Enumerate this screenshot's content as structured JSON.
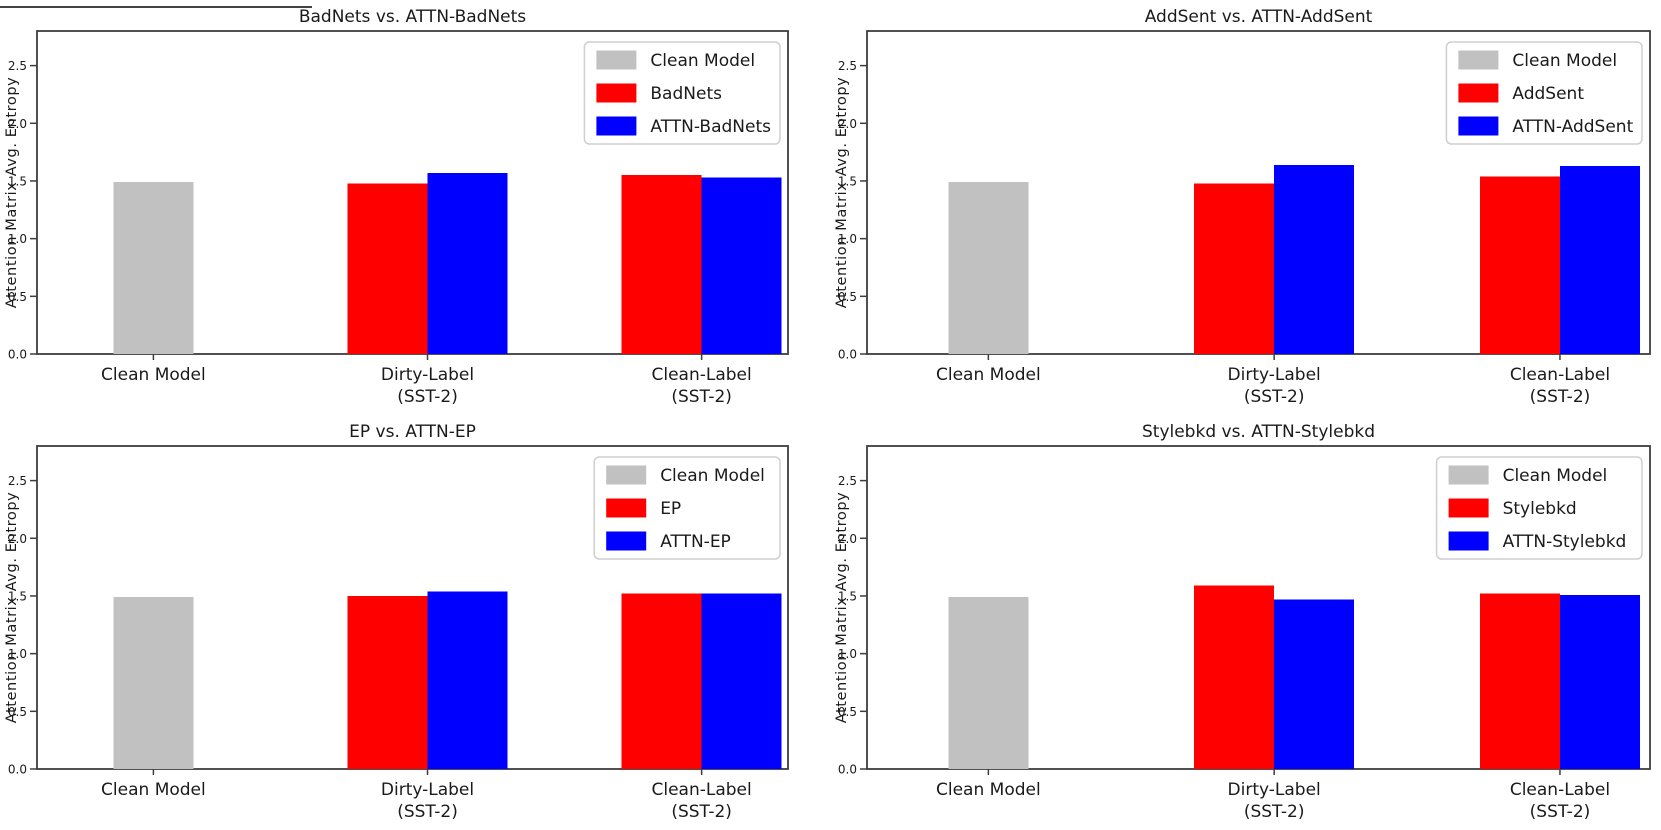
{
  "figure": {
    "ylabel": "Attention Matrix Avg. Entropy",
    "yticks": [
      "0.0",
      "0.5",
      "1.0",
      "1.5",
      "2.0",
      "2.5"
    ],
    "ylim": [
      0,
      2.8
    ],
    "grid": false,
    "legend_position": "upper right",
    "categories": [
      [
        "Clean Model"
      ],
      [
        "Dirty-Label",
        "(SST-2)"
      ],
      [
        "Clean-Label",
        "(SST-2)"
      ]
    ],
    "colors": {
      "clean_model": "#c1c1c1",
      "attack": "#ff0000",
      "attn_variant": "#0000ff",
      "spine": "#3d3d3d",
      "legend_border": "#cfcfcf",
      "text": "#1a1a1a"
    }
  },
  "chart_data": [
    {
      "type": "bar",
      "title": "BadNets vs. ATTN-BadNets",
      "ylabel": "Attention Matrix Avg. Entropy",
      "ylim": [
        0,
        2.8
      ],
      "categories": [
        "Clean Model",
        "Dirty-Label (SST-2)",
        "Clean-Label (SST-2)"
      ],
      "series": [
        {
          "name": "Clean Model",
          "color": "#c1c1c1",
          "values": [
            1.49,
            null,
            null
          ]
        },
        {
          "name": "BadNets",
          "color": "#ff0000",
          "values": [
            null,
            1.48,
            1.55
          ]
        },
        {
          "name": "ATTN-BadNets",
          "color": "#0000ff",
          "values": [
            null,
            1.57,
            1.53
          ]
        }
      ]
    },
    {
      "type": "bar",
      "title": "AddSent vs. ATTN-AddSent",
      "ylabel": "Attention Matrix Avg. Entropy",
      "ylim": [
        0,
        2.8
      ],
      "categories": [
        "Clean Model",
        "Dirty-Label (SST-2)",
        "Clean-Label (SST-2)"
      ],
      "series": [
        {
          "name": "Clean Model",
          "color": "#c1c1c1",
          "values": [
            1.49,
            null,
            null
          ]
        },
        {
          "name": "AddSent",
          "color": "#ff0000",
          "values": [
            null,
            1.48,
            1.54
          ]
        },
        {
          "name": "ATTN-AddSent",
          "color": "#0000ff",
          "values": [
            null,
            1.64,
            1.63
          ]
        }
      ]
    },
    {
      "type": "bar",
      "title": "EP vs. ATTN-EP",
      "ylabel": "Attention Matrix Avg. Entropy",
      "ylim": [
        0,
        2.8
      ],
      "categories": [
        "Clean Model",
        "Dirty-Label (SST-2)",
        "Clean-Label (SST-2)"
      ],
      "series": [
        {
          "name": "Clean Model",
          "color": "#c1c1c1",
          "values": [
            1.49,
            null,
            null
          ]
        },
        {
          "name": "EP",
          "color": "#ff0000",
          "values": [
            null,
            1.5,
            1.52
          ]
        },
        {
          "name": "ATTN-EP",
          "color": "#0000ff",
          "values": [
            null,
            1.54,
            1.52
          ]
        }
      ]
    },
    {
      "type": "bar",
      "title": "Stylebkd vs. ATTN-Stylebkd",
      "ylabel": "Attention Matrix Avg. Entropy",
      "ylim": [
        0,
        2.8
      ],
      "categories": [
        "Clean Model",
        "Dirty-Label (SST-2)",
        "Clean-Label (SST-2)"
      ],
      "series": [
        {
          "name": "Clean Model",
          "color": "#c1c1c1",
          "values": [
            1.49,
            null,
            null
          ]
        },
        {
          "name": "Stylebkd",
          "color": "#ff0000",
          "values": [
            null,
            1.59,
            1.52
          ]
        },
        {
          "name": "ATTN-Stylebkd",
          "color": "#0000ff",
          "values": [
            null,
            1.47,
            1.51
          ]
        }
      ]
    }
  ]
}
